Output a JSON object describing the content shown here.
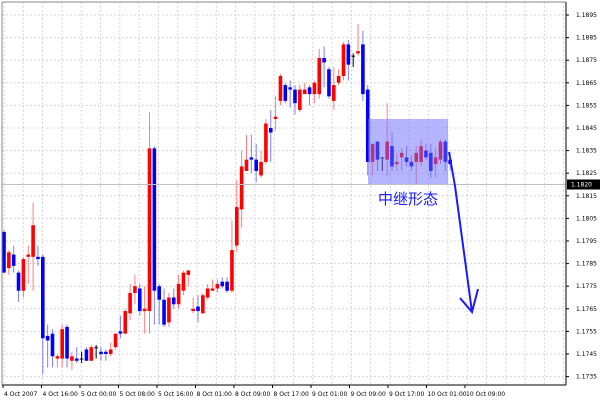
{
  "chart_data": {
    "type": "candlestick",
    "title": "",
    "xlabel": "",
    "ylabel": "",
    "ylim": [
      1.173,
      1.19
    ],
    "grid": true,
    "y_ticks": [
      "1.1895",
      "1.1885",
      "1.1875",
      "1.1865",
      "1.1855",
      "1.1845",
      "1.1835",
      "1.1825",
      "1.1815",
      "1.1805",
      "1.1795",
      "1.1785",
      "1.1775",
      "1.1765",
      "1.1755",
      "1.1745",
      "1.1735"
    ],
    "x_ticks": [
      "4 Oct 2007",
      "4 Oct 16:00",
      "5 Oct 00:00",
      "5 Oct 08:00",
      "5 Oct 16:00",
      "8 Oct 01:00",
      "8 Oct 09:00",
      "8 Oct 17:00",
      "9 Oct 01:00",
      "9 Oct 09:00",
      "9 Oct 17:00",
      "10 Oct 01:00",
      "10 Oct 09:00"
    ],
    "current_price": "1.1820",
    "colors": {
      "up": "#ff0000",
      "down": "#0000ff",
      "doji": "#000000",
      "annotation": "#1a1aff",
      "highlight": "#6b6bff"
    },
    "ohlc": [
      [
        1.1799,
        1.18,
        1.1781,
        1.1781
      ],
      [
        1.1783,
        1.1791,
        1.178,
        1.179
      ],
      [
        1.1789,
        1.1793,
        1.1781,
        1.1784
      ],
      [
        1.1781,
        1.1782,
        1.1768,
        1.1773
      ],
      [
        1.1773,
        1.1788,
        1.177,
        1.1787
      ],
      [
        1.1788,
        1.1793,
        1.1776,
        1.1789
      ],
      [
        1.1788,
        1.1812,
        1.1773,
        1.1802
      ],
      [
        1.1788,
        1.1793,
        1.1784,
        1.1787
      ],
      [
        1.1788,
        1.1789,
        1.1736,
        1.1752
      ],
      [
        1.1753,
        1.1758,
        1.1739,
        1.1751
      ],
      [
        1.1754,
        1.1756,
        1.1739,
        1.1744
      ],
      [
        1.1743,
        1.1745,
        1.1739,
        1.1744
      ],
      [
        1.1743,
        1.1758,
        1.1739,
        1.1756
      ],
      [
        1.1757,
        1.1758,
        1.1739,
        1.1743
      ],
      [
        1.1742,
        1.1746,
        1.1738,
        1.1744
      ],
      [
        1.1743,
        1.1748,
        1.1741,
        1.1742
      ],
      [
        1.1743,
        1.1746,
        1.1741,
        1.1743
      ],
      [
        1.1747,
        1.1748,
        1.1742,
        1.1742
      ],
      [
        1.1742,
        1.1749,
        1.1742,
        1.1748
      ],
      [
        1.1748,
        1.1749,
        1.1743,
        1.1748
      ],
      [
        1.1746,
        1.1748,
        1.1742,
        1.1745
      ],
      [
        1.1746,
        1.1747,
        1.1742,
        1.1745
      ],
      [
        1.1745,
        1.175,
        1.1744,
        1.1747
      ],
      [
        1.1748,
        1.1754,
        1.1747,
        1.1754
      ],
      [
        1.1755,
        1.1762,
        1.1752,
        1.1754
      ],
      [
        1.1754,
        1.1765,
        1.1754,
        1.1764
      ],
      [
        1.1763,
        1.1776,
        1.176,
        1.1772
      ],
      [
        1.1772,
        1.178,
        1.1767,
        1.1775
      ],
      [
        1.1774,
        1.1776,
        1.1762,
        1.1764
      ],
      [
        1.1764,
        1.1775,
        1.1754,
        1.1765
      ],
      [
        1.1764,
        1.1852,
        1.1754,
        1.1836
      ],
      [
        1.1836,
        1.1837,
        1.1758,
        1.1773
      ],
      [
        1.1775,
        1.1776,
        1.1758,
        1.1769
      ],
      [
        1.1769,
        1.1774,
        1.1757,
        1.1758
      ],
      [
        1.1759,
        1.1772,
        1.1757,
        1.177
      ],
      [
        1.177,
        1.1774,
        1.1765,
        1.1767
      ],
      [
        1.1767,
        1.178,
        1.1765,
        1.1776
      ],
      [
        1.1773,
        1.1782,
        1.1771,
        1.1781
      ],
      [
        1.178,
        1.1782,
        1.1775,
        1.1782
      ],
      [
        1.1764,
        1.177,
        1.1763,
        1.1765
      ],
      [
        1.1766,
        1.1771,
        1.1759,
        1.1764
      ],
      [
        1.1763,
        1.1772,
        1.1763,
        1.1771
      ],
      [
        1.177,
        1.1776,
        1.1769,
        1.1774
      ],
      [
        1.1773,
        1.1778,
        1.1773,
        1.1774
      ],
      [
        1.1774,
        1.1778,
        1.1772,
        1.1776
      ],
      [
        1.1777,
        1.1779,
        1.1774,
        1.1775
      ],
      [
        1.1777,
        1.1779,
        1.1772,
        1.1773
      ],
      [
        1.1773,
        1.1804,
        1.1772,
        1.1791
      ],
      [
        1.1793,
        1.1822,
        1.179,
        1.181
      ],
      [
        1.1809,
        1.1835,
        1.1801,
        1.1828
      ],
      [
        1.1826,
        1.1842,
        1.1826,
        1.1831
      ],
      [
        1.1832,
        1.1842,
        1.1825,
        1.1831
      ],
      [
        1.1831,
        1.1838,
        1.1821,
        1.1826
      ],
      [
        1.1824,
        1.1835,
        1.1823,
        1.183
      ],
      [
        1.183,
        1.1849,
        1.1829,
        1.1847
      ],
      [
        1.1845,
        1.1853,
        1.183,
        1.1843
      ],
      [
        1.1849,
        1.1859,
        1.1844,
        1.185
      ],
      [
        1.1857,
        1.1869,
        1.1855,
        1.1868
      ],
      [
        1.1864,
        1.1865,
        1.1856,
        1.1857
      ],
      [
        1.1863,
        1.1866,
        1.1854,
        1.1862
      ],
      [
        1.1862,
        1.1864,
        1.1851,
        1.1856
      ],
      [
        1.1853,
        1.1864,
        1.1852,
        1.1862
      ],
      [
        1.186,
        1.1865,
        1.186,
        1.1862
      ],
      [
        1.1863,
        1.1864,
        1.1855,
        1.186
      ],
      [
        1.186,
        1.1866,
        1.1856,
        1.1865
      ],
      [
        1.186,
        1.188,
        1.1858,
        1.1876
      ],
      [
        1.1876,
        1.1881,
        1.1863,
        1.1874
      ],
      [
        1.1871,
        1.1872,
        1.1858,
        1.1859
      ],
      [
        1.1857,
        1.1872,
        1.1853,
        1.1864
      ],
      [
        1.1865,
        1.1871,
        1.1864,
        1.1868
      ],
      [
        1.1868,
        1.1883,
        1.1866,
        1.1882
      ],
      [
        1.1882,
        1.1884,
        1.1866,
        1.1873
      ],
      [
        1.1877,
        1.1878,
        1.1872,
        1.1877
      ],
      [
        1.1878,
        1.1891,
        1.1877,
        1.1879
      ],
      [
        1.1882,
        1.1888,
        1.1857,
        1.186
      ],
      [
        1.1862,
        1.1864,
        1.1824,
        1.183
      ],
      [
        1.183,
        1.1838,
        1.1824,
        1.1838
      ],
      [
        1.1839,
        1.1839,
        1.1826,
        1.1831
      ],
      [
        1.1832,
        1.1832,
        1.1826,
        1.1832
      ],
      [
        1.1831,
        1.1856,
        1.1824,
        1.1839
      ],
      [
        1.1837,
        1.1843,
        1.1826,
        1.1828
      ],
      [
        1.1829,
        1.1834,
        1.1826,
        1.183
      ],
      [
        1.1832,
        1.1836,
        1.1826,
        1.1834
      ],
      [
        1.1832,
        1.1837,
        1.1828,
        1.183
      ],
      [
        1.183,
        1.1833,
        1.1826,
        1.1828
      ],
      [
        1.183,
        1.1837,
        1.182,
        1.1834
      ],
      [
        1.183,
        1.184,
        1.1828,
        1.1837
      ],
      [
        1.1835,
        1.1838,
        1.1831,
        1.1832
      ],
      [
        1.1834,
        1.1838,
        1.1823,
        1.1826
      ],
      [
        1.1829,
        1.1836,
        1.1823,
        1.1832
      ],
      [
        1.1831,
        1.184,
        1.1829,
        1.1839
      ],
      [
        1.1839,
        1.184,
        1.1826,
        1.183
      ],
      [
        1.1831,
        1.1834,
        1.1826,
        1.1829
      ]
    ],
    "annotation": {
      "label": "中继形态",
      "box_price_range": [
        1.182,
        1.1849
      ]
    }
  }
}
